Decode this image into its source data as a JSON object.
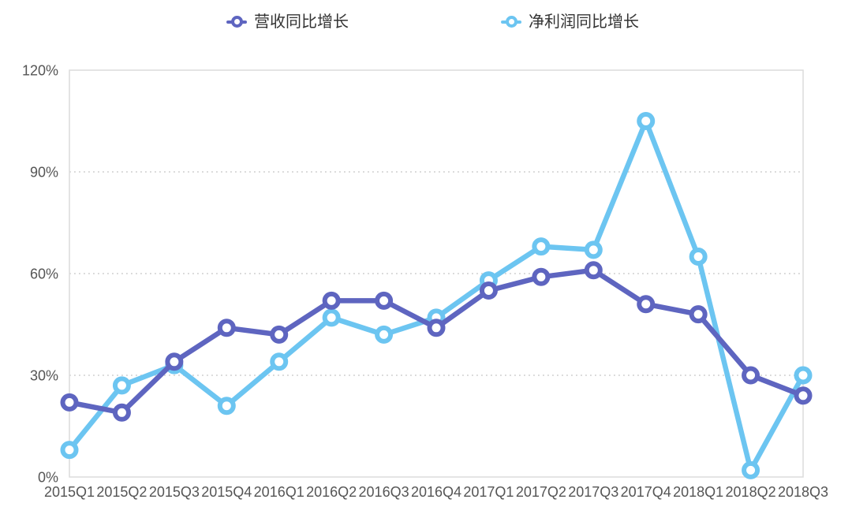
{
  "legend": {
    "items": [
      {
        "label": "营收同比增长",
        "color": "#5e65c0"
      },
      {
        "label": "净利润同比增长",
        "color": "#6cc5f1"
      }
    ]
  },
  "chart_data": {
    "type": "line",
    "title": "",
    "categories": [
      "2015Q1",
      "2015Q2",
      "2015Q3",
      "2015Q4",
      "2016Q1",
      "2016Q2",
      "2016Q3",
      "2016Q4",
      "2017Q1",
      "2017Q2",
      "2017Q3",
      "2017Q4",
      "2018Q1",
      "2018Q2",
      "2018Q3"
    ],
    "series": [
      {
        "id": "revenue-yoy",
        "name": "营收同比增长",
        "color": "#5e65c0",
        "marker": "hollow-circle",
        "values": [
          22,
          19,
          34,
          44,
          42,
          52,
          52,
          44,
          55,
          59,
          61,
          51,
          48,
          30,
          24
        ]
      },
      {
        "id": "net-profit-yoy",
        "name": "净利润同比增长",
        "color": "#6cc5f1",
        "marker": "hollow-circle",
        "values": [
          8,
          27,
          33,
          21,
          34,
          47,
          42,
          47,
          58,
          68,
          67,
          105,
          65,
          2,
          30
        ]
      }
    ],
    "xlabel": "",
    "ylabel": "",
    "ylim": [
      0,
      120
    ],
    "yticks": [
      0,
      30,
      60,
      90,
      120
    ],
    "ytick_labels": [
      "0%",
      "30%",
      "60%",
      "90%",
      "120%"
    ],
    "grid": "horizontal dotted lines at 30/60/90, solid border box around plot",
    "legend_position": "top-center"
  },
  "colors": {
    "background": "#ffffff",
    "axis_text": "#555555",
    "legend_text": "#333333",
    "plot_border": "#dcdcdc",
    "gridline": "#cccccc"
  }
}
